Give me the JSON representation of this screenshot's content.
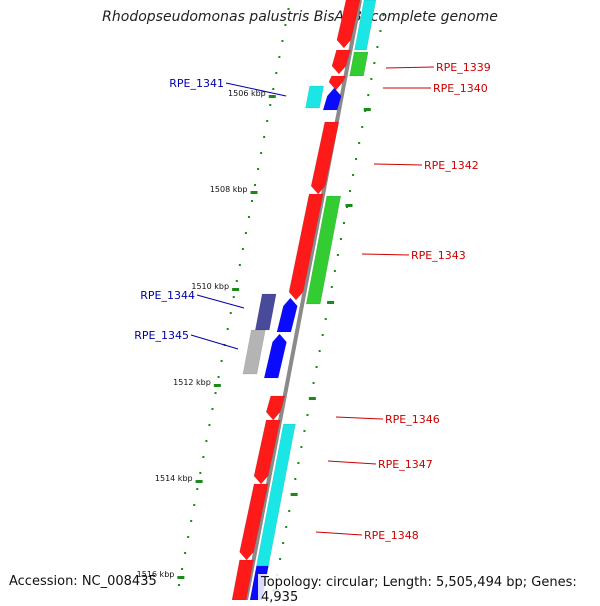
{
  "title": "Rhodopseudomonas palustris BisA53, complete genome",
  "footer": {
    "accession": "Accession: NC_008435",
    "topology": "Topology: circular; Length: 5,505,494 bp; Genes: 4,935"
  },
  "colors": {
    "backbone": "#8a8a8a",
    "forward_label": "#cc0000",
    "reverse_label": "#0000aa",
    "tick": "#1a8a1a",
    "red": "#ff1a1a",
    "cyan": "#1ae6e6",
    "green": "#33cc33",
    "blue": "#0a0aff",
    "navy": "#4a4a9a",
    "gray": "#b4b4b4"
  },
  "ticks": [
    {
      "label": "1506 kbp"
    },
    {
      "label": "1508 kbp"
    },
    {
      "label": "1510 kbp"
    },
    {
      "label": "1512 kbp"
    },
    {
      "label": "1514 kbp"
    },
    {
      "label": "1516 kbp"
    }
  ],
  "gene_labels": [
    {
      "text": "RPE_1339",
      "strand": "forward"
    },
    {
      "text": "RPE_1340",
      "strand": "forward"
    },
    {
      "text": "RPE_1341",
      "strand": "reverse"
    },
    {
      "text": "RPE_1342",
      "strand": "forward"
    },
    {
      "text": "RPE_1343",
      "strand": "forward"
    },
    {
      "text": "RPE_1344",
      "strand": "reverse"
    },
    {
      "text": "RPE_1345",
      "strand": "reverse"
    },
    {
      "text": "RPE_1346",
      "strand": "forward"
    },
    {
      "text": "RPE_1347",
      "strand": "forward"
    },
    {
      "text": "RPE_1348",
      "strand": "forward"
    }
  ]
}
